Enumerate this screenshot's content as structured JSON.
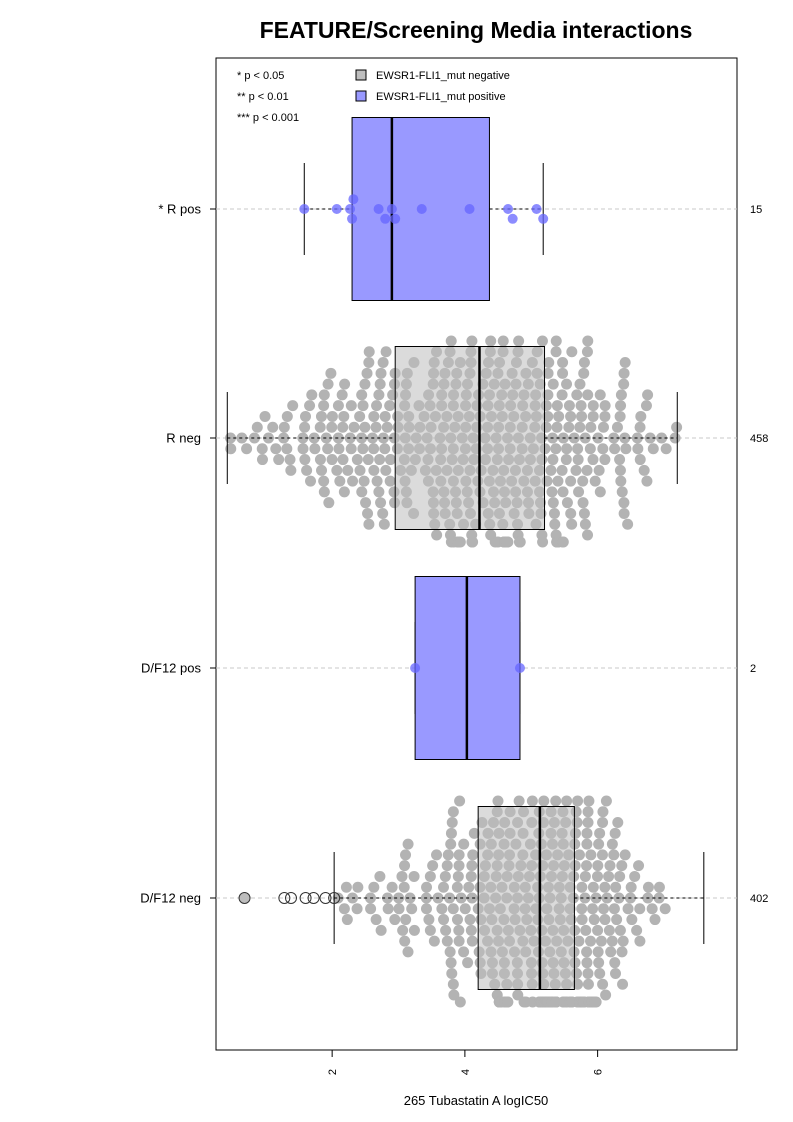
{
  "chart_data": {
    "type": "box",
    "title": "FEATURE/Screening Media interactions",
    "xlabel": "265 Tubastatin A logIC50",
    "xlim": [
      0.25,
      8.1
    ],
    "x_ticks": [
      2,
      4,
      6
    ],
    "x_tick_labels": [
      "2",
      "4",
      "6"
    ],
    "significance_legend": [
      "* p < 0.05",
      "** p < 0.01",
      "*** p < 0.001"
    ],
    "legend": [
      {
        "label": "EWSR1-FLI1_mut negative",
        "color": "#bebebe"
      },
      {
        "label": "EWSR1-FLI1_mut positive",
        "color": "#9999ff"
      }
    ],
    "groups": [
      {
        "label": "* R pos",
        "n": "15",
        "mutation": "positive",
        "whisker_low": 1.58,
        "q1": 2.3,
        "median": 2.9,
        "q3": 4.37,
        "whisker_high": 5.18,
        "points": [
          1.58,
          2.07,
          2.27,
          2.3,
          2.32,
          2.7,
          2.8,
          2.9,
          2.95,
          3.35,
          4.07,
          4.65,
          4.72,
          5.08,
          5.18
        ]
      },
      {
        "label": "R neg",
        "n": "458",
        "mutation": "negative",
        "whisker_low": 0.42,
        "q1": 2.95,
        "median": 4.22,
        "q3": 5.2,
        "whisker_high": 7.2,
        "outliers": []
      },
      {
        "label": "D/F12 pos",
        "n": "2",
        "mutation": "positive",
        "whisker_low": 3.25,
        "q1": 3.25,
        "median": 4.03,
        "q3": 4.83,
        "whisker_high": 4.83,
        "points": [
          3.25,
          4.83
        ]
      },
      {
        "label": "D/F12 neg",
        "n": "402",
        "mutation": "negative",
        "whisker_low": 2.03,
        "q1": 4.2,
        "median": 5.13,
        "q3": 5.65,
        "whisker_high": 7.6,
        "outliers": [
          0.68,
          1.28,
          1.38,
          1.6,
          1.72,
          1.9,
          2.03
        ]
      }
    ],
    "grid": "horizontal dashed at groups",
    "legend_position": "top"
  }
}
